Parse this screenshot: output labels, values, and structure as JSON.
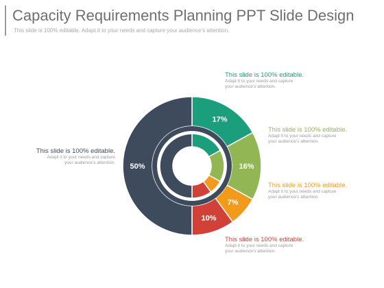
{
  "slide": {
    "title": "Capacity Requirements Planning PPT Slide Design",
    "subtitle": "This slide is 100% editable. Adapt it to your needs and capture your audience’s attention."
  },
  "chart_data": {
    "type": "pie",
    "style": "donut",
    "slices": [
      {
        "label": "17%",
        "value": 17,
        "color": "#1a9e7c"
      },
      {
        "label": "16%",
        "value": 16,
        "color": "#93b655"
      },
      {
        "label": "7%",
        "value": 7,
        "color": "#f19a1c"
      },
      {
        "label": "10%",
        "value": 10,
        "color": "#d24138"
      },
      {
        "label": "50%",
        "value": 50,
        "color": "#3e4b5c"
      }
    ]
  },
  "callouts": [
    {
      "title": "This slide is 100% editable.",
      "body_line1": "Adapt it to your needs and capture",
      "body_line2": "your audience’s attention.",
      "color": "#1a9e7c"
    },
    {
      "title": "This slide is 100% editable.",
      "body_line1": "Adapt it to your needs and capture",
      "body_line2": "your audience’s attention.",
      "color": "#93b655"
    },
    {
      "title": "This slide is 100% editable.",
      "body_line1": "Adapt it to your needs and capture",
      "body_line2": "your audience’s attention.",
      "color": "#f19a1c"
    },
    {
      "title": "This slide is 100% editable.",
      "body_line1": "Adapt it to your needs and capture",
      "body_line2": "your audience’s attention.",
      "color": "#d24138"
    },
    {
      "title": "This slide is 100% editable.",
      "body_line1": "Adapt it to your needs and capture",
      "body_line2": "your audience’s attention.",
      "color": "#3e4b5c"
    }
  ]
}
